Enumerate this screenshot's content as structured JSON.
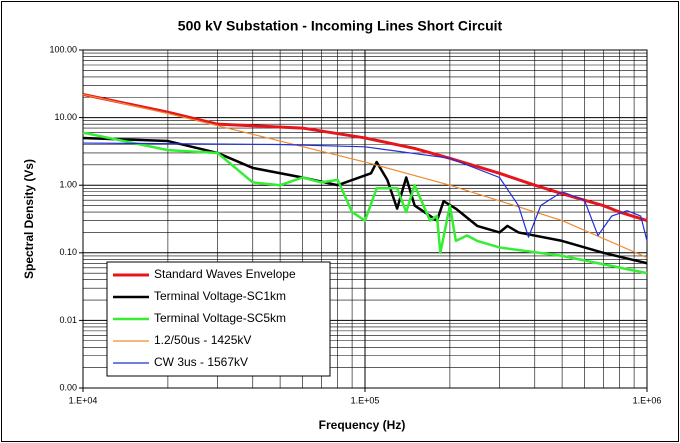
{
  "chart_data": {
    "type": "line",
    "title": "500 kV Substation - Incoming Lines Short Circuit",
    "x_label": "Frequency (Hz)",
    "y_label": "Spectral Density (Vs)",
    "log_x": true,
    "log_y": true,
    "grid": true,
    "legend": "lower left",
    "xlim": [
      10000,
      1000000
    ],
    "ylim": [
      0.001,
      100
    ],
    "xticks": [
      {
        "value": 10000,
        "label": "1.E+04"
      },
      {
        "value": 100000,
        "label": "1.E+05"
      },
      {
        "value": 1000000,
        "label": "1.E+06"
      }
    ],
    "yticks": [
      {
        "value": 0.001,
        "label": "0.00"
      },
      {
        "value": 0.01,
        "label": "0.01"
      },
      {
        "value": 0.1,
        "label": "0.10"
      },
      {
        "value": 1,
        "label": "1.00"
      },
      {
        "value": 10,
        "label": "10.00"
      },
      {
        "value": 100,
        "label": "100.00"
      }
    ],
    "xminor": [
      20000,
      30000,
      40000,
      50000,
      60000,
      70000,
      80000,
      90000,
      200000,
      300000,
      400000,
      500000,
      600000,
      700000,
      800000,
      900000
    ],
    "yminor": [
      0.002,
      0.003,
      0.004,
      0.005,
      0.006,
      0.007,
      0.008,
      0.009,
      0.02,
      0.03,
      0.04,
      0.05,
      0.06,
      0.07,
      0.08,
      0.09,
      0.2,
      0.3,
      0.4,
      0.5,
      0.6,
      0.7,
      0.8,
      0.9,
      2,
      3,
      4,
      5,
      6,
      7,
      8,
      9,
      20,
      30,
      40,
      50,
      60,
      70,
      80,
      90
    ],
    "series": [
      {
        "name": "Standard Waves Envelope",
        "color": "#e8141b",
        "width": 3,
        "x": [
          10000,
          20000,
          30000,
          60000,
          100000,
          150000,
          200000,
          300000,
          400000,
          500000,
          600000,
          700000,
          800000,
          1000000
        ],
        "values": [
          22,
          12,
          8,
          7,
          5,
          3.5,
          2.5,
          1.5,
          1,
          0.75,
          0.6,
          0.5,
          0.4,
          0.3
        ]
      },
      {
        "name": "Terminal Voltage-SC1km",
        "color": "#000000",
        "width": 2.5,
        "x": [
          10000,
          20000,
          30000,
          40000,
          60000,
          80000,
          105000,
          110000,
          120000,
          130000,
          140000,
          150000,
          180000,
          190000,
          210000,
          250000,
          300000,
          320000,
          350000,
          500000,
          700000,
          1000000
        ],
        "values": [
          5,
          4.5,
          3,
          1.8,
          1.3,
          1,
          1.5,
          2.2,
          1.2,
          0.45,
          1.3,
          0.5,
          0.3,
          0.58,
          0.45,
          0.25,
          0.2,
          0.25,
          0.2,
          0.15,
          0.1,
          0.07
        ]
      },
      {
        "name": "Terminal Voltage-SC5km",
        "color": "#33ee33",
        "width": 2.5,
        "x": [
          10000,
          20000,
          30000,
          40000,
          50000,
          60000,
          70000,
          80000,
          90000,
          100000,
          110000,
          130000,
          140000,
          150000,
          170000,
          180000,
          185000,
          200000,
          210000,
          230000,
          250000,
          300000,
          500000,
          1000000
        ],
        "values": [
          6,
          3.3,
          3,
          1.1,
          1,
          1.3,
          1.1,
          1.2,
          0.4,
          0.3,
          0.9,
          0.9,
          0.4,
          1,
          0.3,
          0.35,
          0.1,
          0.5,
          0.15,
          0.18,
          0.15,
          0.12,
          0.09,
          0.05
        ]
      },
      {
        "name": "1.2/50us - 1425kV",
        "color": "#f08a30",
        "width": 1.2,
        "x": [
          10000,
          20000,
          50000,
          100000,
          200000,
          500000,
          1000000
        ],
        "values": [
          22,
          11.5,
          4.5,
          2.2,
          1,
          0.3,
          0.085
        ]
      },
      {
        "name": "CW 3us - 1567kV",
        "color": "#1f2fd8",
        "width": 1.2,
        "x": [
          10000,
          50000,
          100000,
          200000,
          300000,
          350000,
          380000,
          420000,
          500000,
          600000,
          670000,
          750000,
          850000,
          950000,
          1000000
        ],
        "values": [
          4.2,
          4,
          3.7,
          2.5,
          1.3,
          0.5,
          0.17,
          0.5,
          0.8,
          0.6,
          0.18,
          0.35,
          0.42,
          0.35,
          0.15
        ]
      }
    ]
  }
}
